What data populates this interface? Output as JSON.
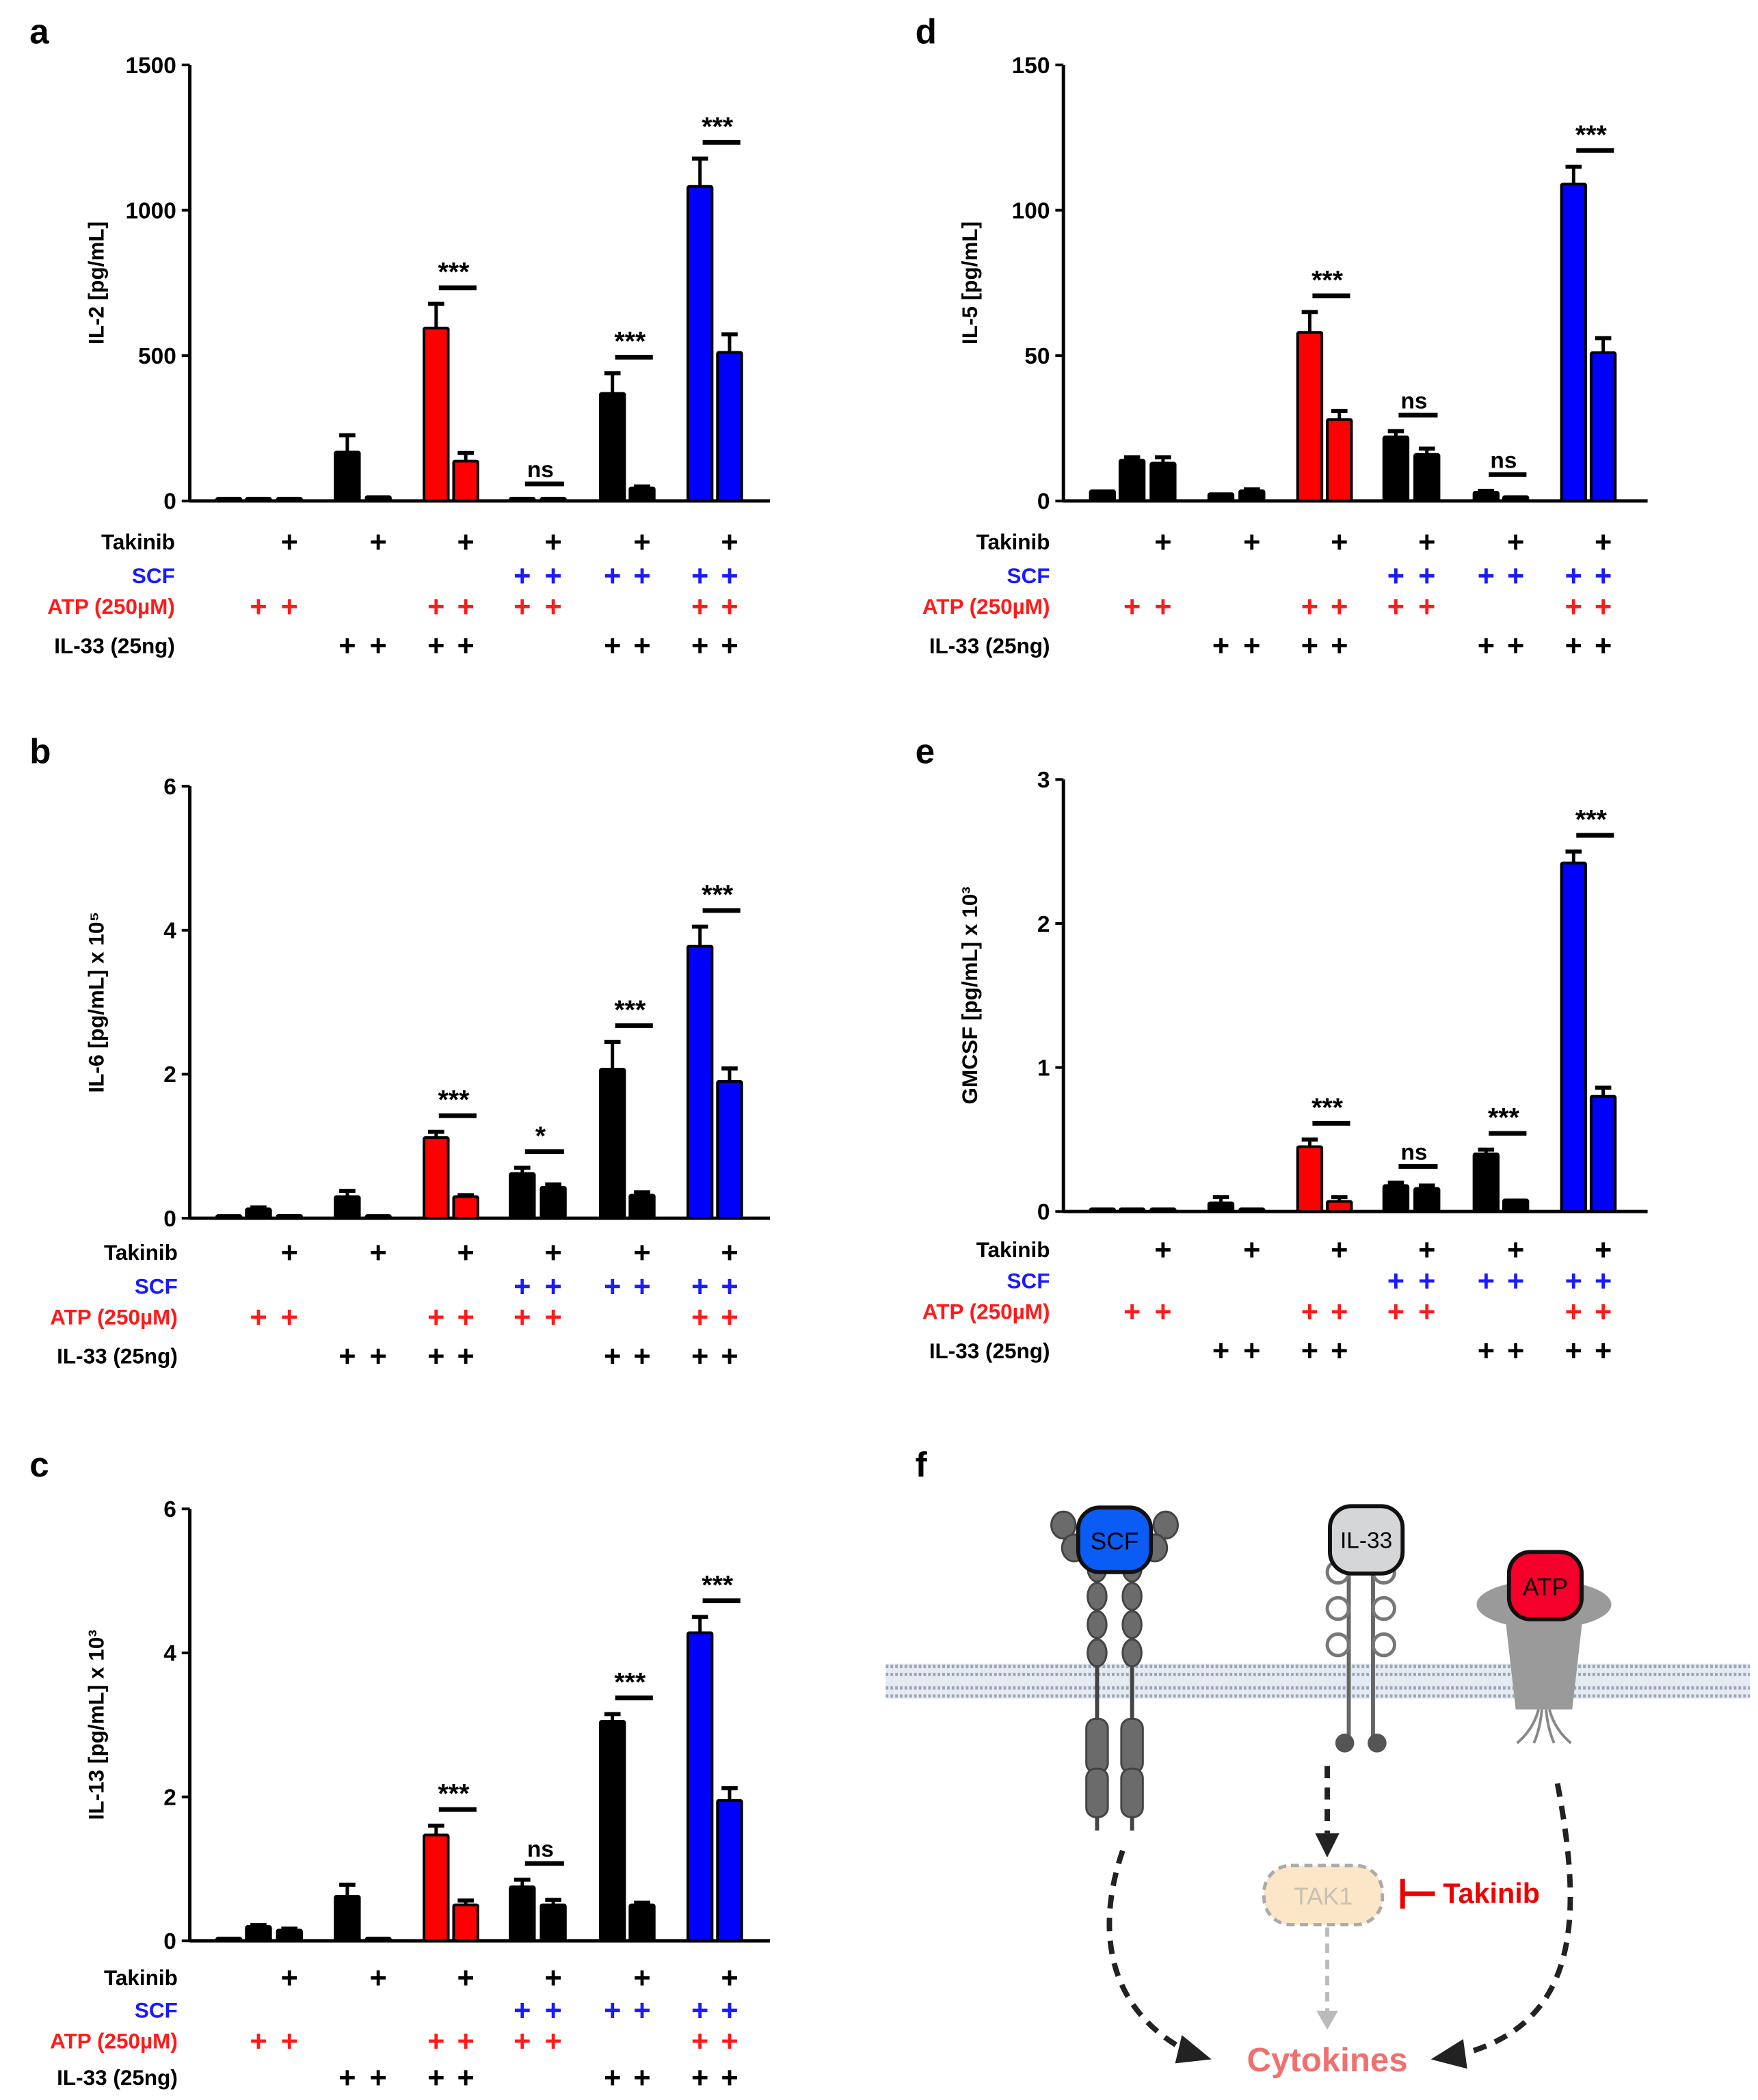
{
  "condition_rows": [
    {
      "label": "Takinib",
      "color": "#000000"
    },
    {
      "label": "SCF",
      "color": "#1a1aff"
    },
    {
      "label": "ATP (250µM)",
      "color": "#ff1a1a"
    },
    {
      "label": "IL-33 (25ng)",
      "color": "#000000"
    }
  ],
  "plus_symbol": "+",
  "bar_conditions": {
    "Takinib": [
      0,
      0,
      1,
      0,
      1,
      0,
      1,
      0,
      1,
      0,
      1,
      0,
      1
    ],
    "SCF": [
      0,
      0,
      0,
      0,
      0,
      0,
      0,
      1,
      1,
      1,
      1,
      1,
      1
    ],
    "ATP": [
      0,
      1,
      1,
      0,
      0,
      1,
      1,
      1,
      1,
      0,
      0,
      1,
      1
    ],
    "IL33": [
      0,
      0,
      0,
      1,
      1,
      1,
      1,
      0,
      0,
      1,
      1,
      1,
      1
    ]
  },
  "bar_colors": [
    "#000000",
    "#000000",
    "#000000",
    "#000000",
    "#000000",
    "#ff0000",
    "#ff0000",
    "#000000",
    "#000000",
    "#000000",
    "#000000",
    "#0000ff",
    "#0000ff"
  ],
  "chart_data": [
    {
      "panel": "a",
      "type": "bar",
      "ylabel": "IL-2 [pg/mL]",
      "ylim": [
        0,
        1500
      ],
      "yticks": [
        "0",
        "500",
        "1000",
        "1500"
      ],
      "values": [
        3,
        3,
        3,
        168,
        15,
        595,
        137,
        3,
        3,
        370,
        45,
        1082,
        511
      ],
      "errors": [
        0,
        0,
        0,
        58,
        0,
        83,
        28,
        0,
        0,
        69,
        5,
        96,
        62
      ],
      "significance": [
        {
          "bars": [
            5,
            6
          ],
          "label": "***"
        },
        {
          "bars": [
            7,
            8
          ],
          "label": "ns"
        },
        {
          "bars": [
            9,
            10
          ],
          "label": "***"
        },
        {
          "bars": [
            11,
            12
          ],
          "label": "***"
        }
      ]
    },
    {
      "panel": "b",
      "type": "bar",
      "ylabel": "IL-6 [pg/mL] x 10⁵",
      "ylim": [
        0,
        6
      ],
      "yticks": [
        "0",
        "2",
        "4",
        "6"
      ],
      "values": [
        0.02,
        0.13,
        0.04,
        0.3,
        0.02,
        1.12,
        0.3,
        0.62,
        0.43,
        2.07,
        0.32,
        3.78,
        1.9
      ],
      "errors": [
        0,
        0.02,
        0,
        0.08,
        0,
        0.08,
        0.02,
        0.08,
        0.04,
        0.38,
        0.04,
        0.27,
        0.18
      ],
      "significance": [
        {
          "bars": [
            5,
            6
          ],
          "label": "***"
        },
        {
          "bars": [
            7,
            8
          ],
          "label": "*"
        },
        {
          "bars": [
            9,
            10
          ],
          "label": "***"
        },
        {
          "bars": [
            11,
            12
          ],
          "label": "***"
        }
      ]
    },
    {
      "panel": "c",
      "type": "bar",
      "ylabel": "IL-13 [pg/mL] x 10³",
      "ylim": [
        0,
        6
      ],
      "yticks": [
        "0",
        "2",
        "4",
        "6"
      ],
      "values": [
        0.02,
        0.2,
        0.15,
        0.62,
        0.03,
        1.47,
        0.5,
        0.75,
        0.5,
        3.05,
        0.5,
        4.28,
        1.95
      ],
      "errors": [
        0,
        0.02,
        0.02,
        0.16,
        0,
        0.13,
        0.06,
        0.1,
        0.07,
        0.1,
        0.03,
        0.22,
        0.17
      ],
      "significance": [
        {
          "bars": [
            5,
            6
          ],
          "label": "***"
        },
        {
          "bars": [
            7,
            8
          ],
          "label": "ns"
        },
        {
          "bars": [
            9,
            10
          ],
          "label": "***"
        },
        {
          "bars": [
            11,
            12
          ],
          "label": "***"
        }
      ]
    },
    {
      "panel": "d",
      "type": "bar",
      "ylabel": "IL-5 [pg/mL]",
      "ylim": [
        0,
        150
      ],
      "yticks": [
        "0",
        "50",
        "100",
        "150"
      ],
      "values": [
        3.5,
        14,
        13,
        2.5,
        3.5,
        58,
        28,
        22,
        16,
        3,
        1.5,
        109,
        51
      ],
      "errors": [
        0,
        1,
        2,
        0,
        0.5,
        7,
        3,
        2,
        2,
        0.5,
        0,
        6,
        5
      ],
      "significance": [
        {
          "bars": [
            5,
            6
          ],
          "label": "***"
        },
        {
          "bars": [
            7,
            8
          ],
          "label": "ns"
        },
        {
          "bars": [
            9,
            10
          ],
          "label": "ns"
        },
        {
          "bars": [
            11,
            12
          ],
          "label": "***"
        }
      ]
    },
    {
      "panel": "e",
      "type": "bar",
      "ylabel": "GMCSF [pg/mL] x 10³",
      "ylim": [
        0,
        3
      ],
      "yticks": [
        "0",
        "1",
        "2",
        "3"
      ],
      "values": [
        0.01,
        0,
        0,
        0.06,
        0,
        0.45,
        0.07,
        0.18,
        0.16,
        0.4,
        0.08,
        2.42,
        0.8
      ],
      "errors": [
        0,
        0,
        0,
        0.04,
        0,
        0.05,
        0.03,
        0.02,
        0.02,
        0.03,
        0,
        0.08,
        0.06
      ],
      "significance": [
        {
          "bars": [
            5,
            6
          ],
          "label": "***"
        },
        {
          "bars": [
            7,
            8
          ],
          "label": "ns"
        },
        {
          "bars": [
            9,
            10
          ],
          "label": "***"
        },
        {
          "bars": [
            11,
            12
          ],
          "label": "***"
        }
      ]
    }
  ],
  "diagram": {
    "panel": "f",
    "scf": "SCF",
    "il33": "IL-33",
    "atp": "ATP",
    "tak1": "TAK1",
    "takinib": "Takinib",
    "cytokines": "Cytokines",
    "colors": {
      "scf": "#0a5cf5",
      "il33": "#d4d6d8",
      "atp": "#f5002a",
      "tak1": "#fbe6c8",
      "takinib": "#ee0000",
      "cytokines": "#f07070"
    }
  }
}
